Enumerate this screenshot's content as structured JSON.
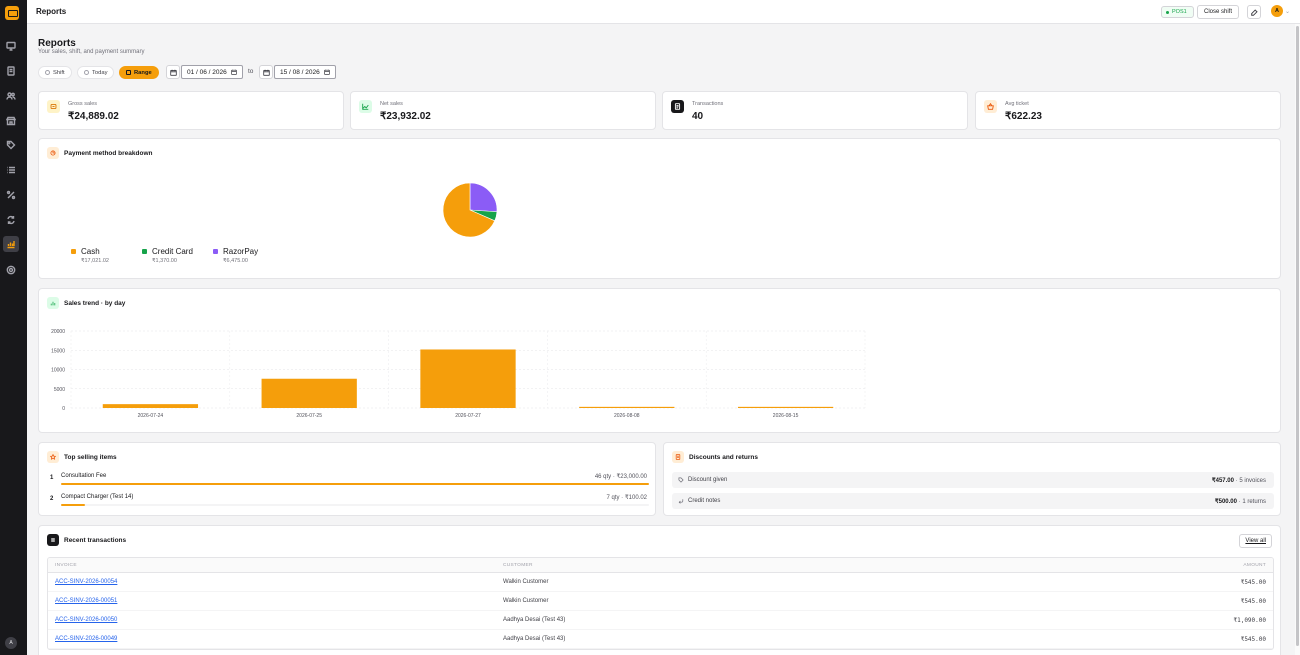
{
  "topbar": {
    "title": "Reports",
    "pos_badge": "POS1",
    "close_shift_label": "Close shift",
    "avatar_initial": "A"
  },
  "sidebar": {
    "avatar_initial": "A",
    "icons": [
      "monitor-icon",
      "invoice-icon",
      "users-icon",
      "store-icon",
      "tag-icon",
      "list-icon",
      "percent-icon",
      "sync-icon",
      "reports-icon",
      "settings-icon"
    ]
  },
  "header": {
    "title": "Reports",
    "subtitle": "Your sales, shift, and payment summary",
    "filters": [
      "Shift",
      "Today",
      "Range"
    ],
    "active_filter": "Range",
    "date_from": "01 / 06 / 2026",
    "date_to": "15 / 08 / 2026",
    "to_label": "to"
  },
  "stats": [
    {
      "label": "Gross sales",
      "value": "₹24,889.02",
      "icon": "receipt-icon"
    },
    {
      "label": "Net sales",
      "value": "₹23,932.02",
      "icon": "trend-icon"
    },
    {
      "label": "Transactions",
      "value": "40",
      "icon": "document-icon"
    },
    {
      "label": "Avg ticket",
      "value": "₹622.23",
      "icon": "basket-icon"
    }
  ],
  "payment": {
    "title": "Payment method breakdown",
    "legend": [
      {
        "name": "Cash",
        "amount": "₹17,021.02"
      },
      {
        "name": "Credit Card",
        "amount": "₹1,370.00"
      },
      {
        "name": "RazorPay",
        "amount": "₹6,475.00"
      }
    ]
  },
  "trend": {
    "title": "Sales trend · by day"
  },
  "chart_data": [
    {
      "type": "pie",
      "categories": [
        "Cash",
        "Credit Card",
        "RazorPay"
      ],
      "values": [
        17021.02,
        1370.0,
        6475.0
      ],
      "colors": [
        "#f59e0b",
        "#16a34a",
        "#8b5cf6"
      ]
    },
    {
      "type": "bar",
      "title": "Sales trend · by day",
      "categories": [
        "2026-07-24",
        "2026-07-25",
        "2026-07-27",
        "2026-08-08",
        "2026-08-15"
      ],
      "values": [
        1000,
        7600,
        15200,
        300,
        300
      ],
      "yticks": [
        "20000",
        "15000",
        "10000",
        "5000",
        "0"
      ],
      "ylim": [
        0,
        20000
      ],
      "grid": true,
      "colors": [
        "#f59e0b"
      ]
    }
  ],
  "top_selling": {
    "title": "Top selling items",
    "items": [
      {
        "rank": "1",
        "name": "Consultation Fee",
        "meta": "46 qty · ₹23,000.00",
        "share": 1.0
      },
      {
        "rank": "2",
        "name": "Compact Charger (Test 14)",
        "meta": "7 qty · ₹100.02",
        "share": 0.04
      }
    ]
  },
  "discounts": {
    "title": "Discounts and returns",
    "rows": [
      {
        "label": "Discount given",
        "value": "₹457.00",
        "suffix": " · 5 invoices"
      },
      {
        "label": "Credit notes",
        "value": "₹500.00",
        "suffix": " · 1 returns"
      }
    ]
  },
  "transactions": {
    "title": "Recent transactions",
    "view_all": "View all",
    "columns": [
      "INVOICE",
      "CUSTOMER",
      "AMOUNT"
    ],
    "rows": [
      {
        "invoice": "ACC-SINV-2026-00054",
        "customer": "Walkin Customer",
        "amount": "₹545.00"
      },
      {
        "invoice": "ACC-SINV-2026-00051",
        "customer": "Walkin Customer",
        "amount": "₹545.00"
      },
      {
        "invoice": "ACC-SINV-2026-00050",
        "customer": "Aadhya Desai (Test 43)",
        "amount": "₹1,090.00"
      },
      {
        "invoice": "ACC-SINV-2026-00049",
        "customer": "Aadhya Desai (Test 43)",
        "amount": "₹545.00"
      }
    ]
  },
  "colors": {
    "accent": "#f59e0b",
    "sidebar": "#18181b",
    "success": "#16a34a",
    "link": "#2563eb"
  }
}
